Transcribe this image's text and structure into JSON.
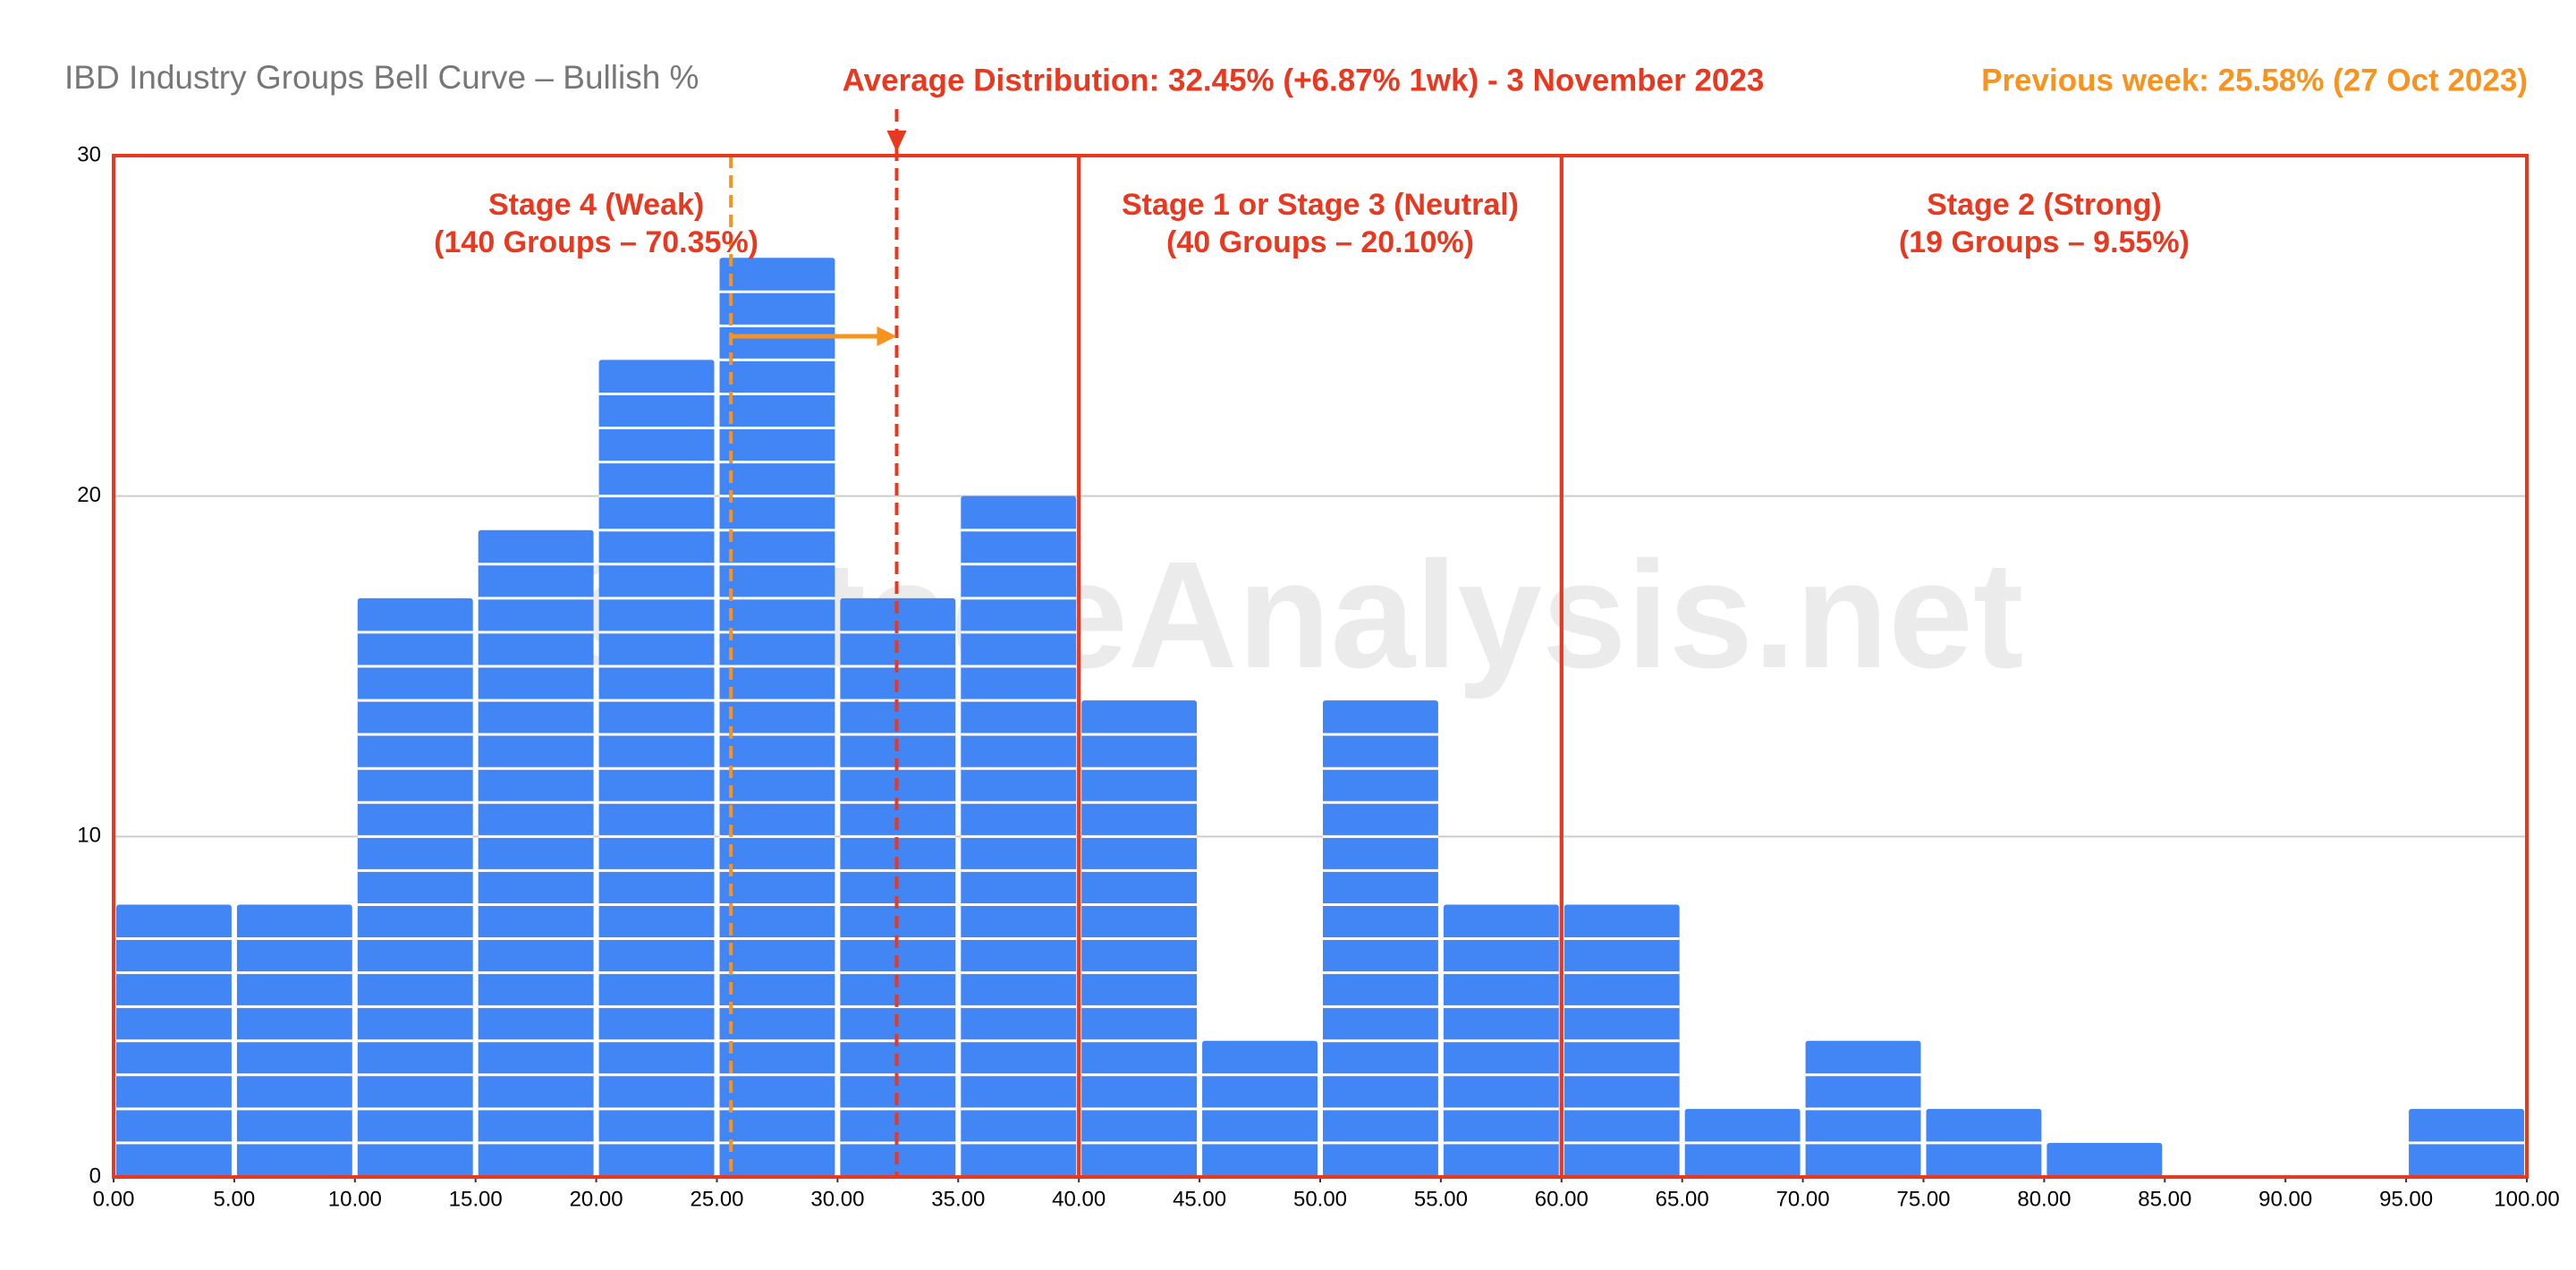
{
  "chart_data": {
    "type": "histogram",
    "title": "IBD Industry Groups Bell Curve – Bullish %",
    "average_text": "Average Distribution: 32.45% (+6.87% 1wk) - 3 November 2023",
    "previous_text": "Previous week: 25.58% (27 Oct 2023)",
    "watermark": "© StageAnalysis.net",
    "bins": [
      0,
      5,
      10,
      15,
      20,
      25,
      30,
      35,
      40,
      45,
      50,
      55,
      60,
      65,
      70,
      75,
      80,
      85,
      90,
      95,
      100
    ],
    "counts": [
      8,
      8,
      17,
      19,
      24,
      27,
      17,
      20,
      14,
      4,
      14,
      8,
      8,
      2,
      4,
      2,
      1,
      0,
      0,
      2
    ],
    "color": "#4285f4",
    "xlim": [
      0,
      100
    ],
    "ylim": [
      0,
      30
    ],
    "xticks": [
      {
        "value": 0,
        "label": "0.00"
      },
      {
        "value": 5,
        "label": "5.00"
      },
      {
        "value": 10,
        "label": "10.00"
      },
      {
        "value": 15,
        "label": "15.00"
      },
      {
        "value": 20,
        "label": "20.00"
      },
      {
        "value": 25,
        "label": "25.00"
      },
      {
        "value": 30,
        "label": "30.00"
      },
      {
        "value": 35,
        "label": "35.00"
      },
      {
        "value": 40,
        "label": "40.00"
      },
      {
        "value": 45,
        "label": "45.00"
      },
      {
        "value": 50,
        "label": "50.00"
      },
      {
        "value": 55,
        "label": "55.00"
      },
      {
        "value": 60,
        "label": "60.00"
      },
      {
        "value": 65,
        "label": "65.00"
      },
      {
        "value": 70,
        "label": "70.00"
      },
      {
        "value": 75,
        "label": "75.00"
      },
      {
        "value": 80,
        "label": "80.00"
      },
      {
        "value": 85,
        "label": "85.00"
      },
      {
        "value": 90,
        "label": "90.00"
      },
      {
        "value": 95,
        "label": "95.00"
      },
      {
        "value": 100,
        "label": "100.00"
      }
    ],
    "yticks": [
      0,
      10,
      20,
      30
    ],
    "grid": true,
    "average": 32.45,
    "average_color": "#e8381f",
    "previous": 25.58,
    "previous_color": "#f7931e",
    "stages": [
      {
        "lines": [
          "Stage 4 (Weak)",
          "(140 Groups – 70.35%)"
        ],
        "range": [
          0,
          40
        ]
      },
      {
        "lines": [
          "Stage 1 or Stage 3 (Neutral)",
          "(40 Groups – 20.10%)"
        ],
        "range": [
          40,
          60
        ]
      },
      {
        "lines": [
          "Stage 2 (Strong)",
          "(19 Groups – 9.55%)"
        ],
        "range": [
          60,
          100
        ]
      }
    ]
  }
}
